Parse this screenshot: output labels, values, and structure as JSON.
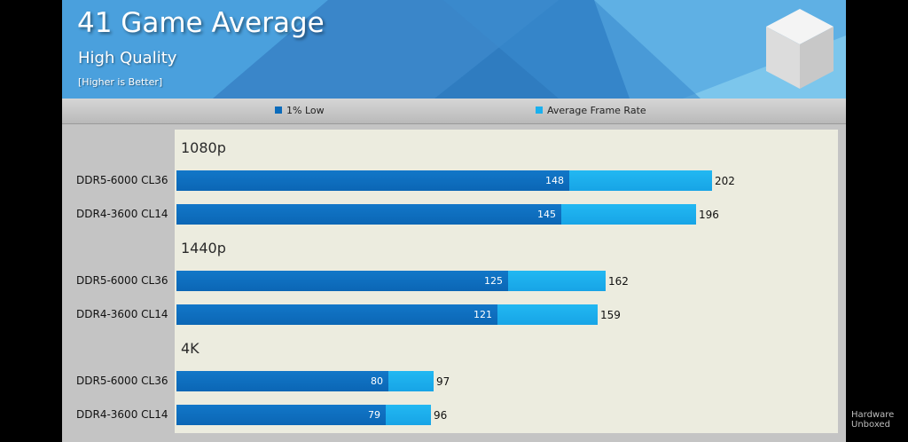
{
  "header": {
    "title": "41 Game Average",
    "subtitle": "High Quality",
    "note": "[Higher is Better]"
  },
  "watermark": {
    "line1": "Hardware",
    "line2": "Unboxed"
  },
  "colors": {
    "low": "#0b6bbb",
    "avg": "#1ab0ee",
    "plot_bg": "#ececdf",
    "header": "#3d8fd0"
  },
  "chart_data": {
    "type": "bar",
    "orientation": "horizontal",
    "legend": [
      "1% Low",
      "Average Frame Rate"
    ],
    "legend_position": "top",
    "groups": [
      {
        "name": "1080p",
        "categories": [
          "DDR5-6000 CL36",
          "DDR4-3600 CL14"
        ],
        "low": [
          148,
          145
        ],
        "avg": [
          202,
          196
        ]
      },
      {
        "name": "1440p",
        "categories": [
          "DDR5-6000 CL36",
          "DDR4-3600 CL14"
        ],
        "low": [
          125,
          121
        ],
        "avg": [
          162,
          159
        ]
      },
      {
        "name": "4K",
        "categories": [
          "DDR5-6000 CL36",
          "DDR4-3600 CL14"
        ],
        "low": [
          80,
          79
        ],
        "avg": [
          97,
          96
        ]
      }
    ],
    "xlim": [
      0,
      250
    ],
    "grid": false
  }
}
